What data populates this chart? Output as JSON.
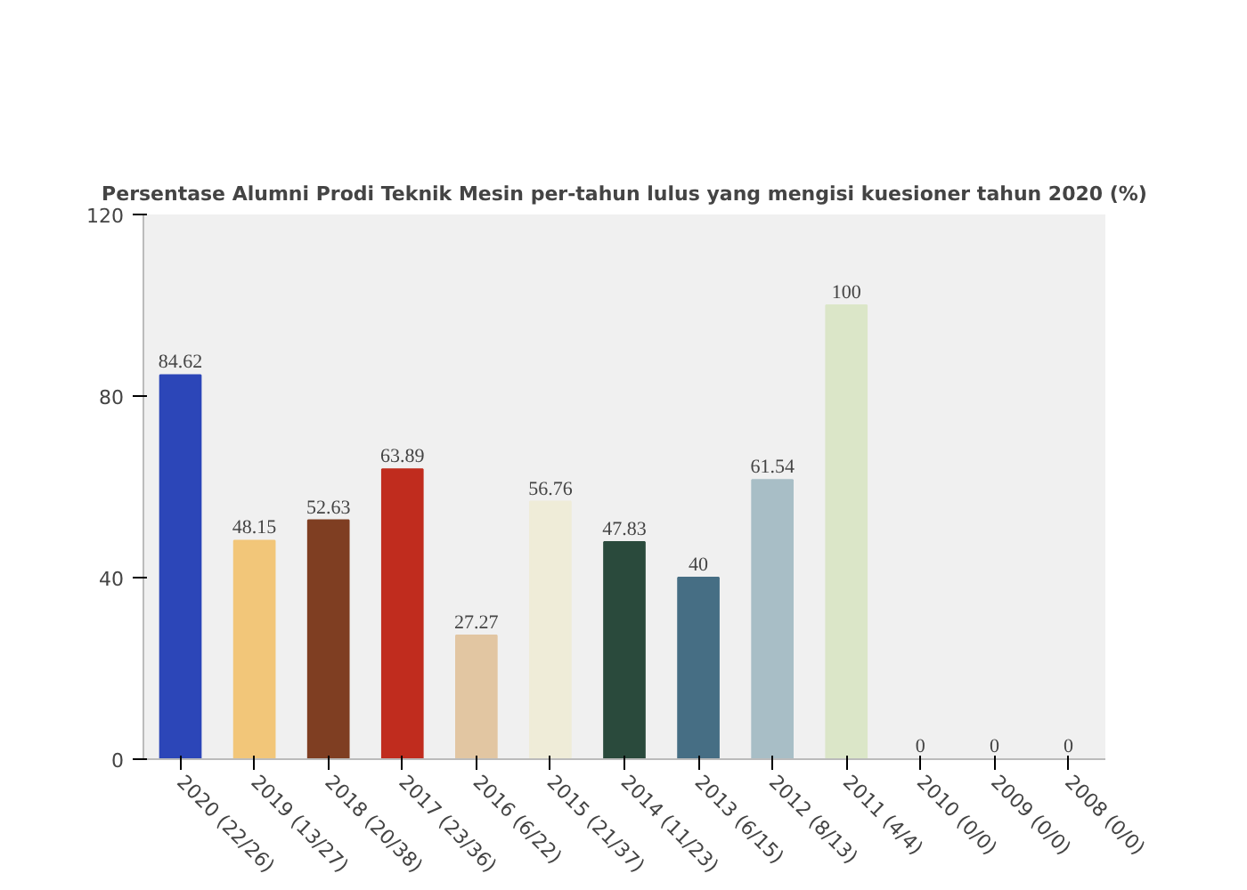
{
  "chart_data": {
    "type": "bar",
    "title": "Persentase Alumni Prodi Teknik Mesin per-tahun lulus yang mengisi kuesioner tahun 2020 (%)",
    "categories": [
      "2020 (22/26)",
      "2019 (13/27)",
      "2018 (20/38)",
      "2017 (23/36)",
      "2016 (6/22)",
      "2015 (21/37)",
      "2014 (11/23)",
      "2013 (6/15)",
      "2012 (8/13)",
      "2011 (4/4)",
      "2010 (0/0)",
      "2009 (0/0)",
      "2008 (0/0)"
    ],
    "values": [
      84.62,
      48.15,
      52.63,
      63.89,
      27.27,
      56.76,
      47.83,
      40,
      61.54,
      100,
      0,
      0,
      0
    ],
    "colors": [
      "#2c46b8",
      "#f2c679",
      "#7f3e22",
      "#c02c1e",
      "#e2c6a2",
      "#efecd8",
      "#2a4a3c",
      "#466e84",
      "#a8bec6",
      "#dbe6c8",
      "#2c46b8",
      "#c8a060",
      "#7f3e22"
    ],
    "ylim": [
      0,
      120
    ],
    "yticks": [
      0,
      40,
      80,
      120
    ],
    "data_labels": true,
    "grid": false
  }
}
